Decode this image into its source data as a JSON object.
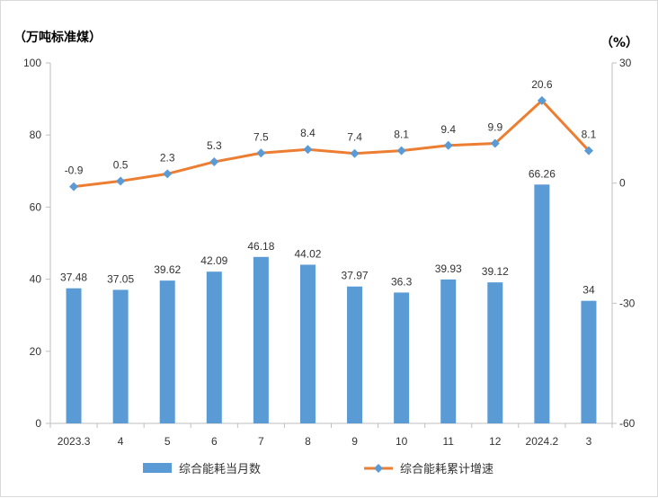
{
  "chart_data": {
    "type": "bar+line",
    "left_unit": "（万吨标准煤）",
    "right_unit": "（%）",
    "categories": [
      "2023.3",
      "4",
      "5",
      "6",
      "7",
      "8",
      "9",
      "10",
      "11",
      "12",
      "2024.2",
      "3"
    ],
    "left_axis": {
      "ylim": [
        0,
        100
      ],
      "ticks": [
        "0",
        "20",
        "40",
        "60",
        "80",
        "100"
      ]
    },
    "right_axis": {
      "ylim": [
        -60,
        30
      ],
      "ticks": [
        "-60",
        "-30",
        "0",
        "30"
      ]
    },
    "series": [
      {
        "name": "综合能耗当月数",
        "type": "bar",
        "axis": "left",
        "color": "#5b9bd5",
        "values": [
          37.48,
          37.05,
          39.62,
          42.09,
          46.18,
          44.02,
          37.97,
          36.3,
          39.93,
          39.12,
          66.26,
          34
        ],
        "labels": [
          "37.48",
          "37.05",
          "39.62",
          "42.09",
          "46.18",
          "44.02",
          "37.97",
          "36.3",
          "39.93",
          "39.12",
          "66.26",
          "34"
        ]
      },
      {
        "name": "综合能耗累计增速",
        "type": "line",
        "axis": "right",
        "color": "#ed7d31",
        "marker_color": "#5b9bd5",
        "values": [
          -0.9,
          0.5,
          2.3,
          5.3,
          7.5,
          8.4,
          7.4,
          8.1,
          9.4,
          9.9,
          20.6,
          8.1
        ],
        "labels": [
          "-0.9",
          "0.5",
          "2.3",
          "5.3",
          "7.5",
          "8.4",
          "7.4",
          "8.1",
          "9.4",
          "9.9",
          "20.6",
          "8.1"
        ]
      }
    ],
    "legend_position": "bottom"
  }
}
